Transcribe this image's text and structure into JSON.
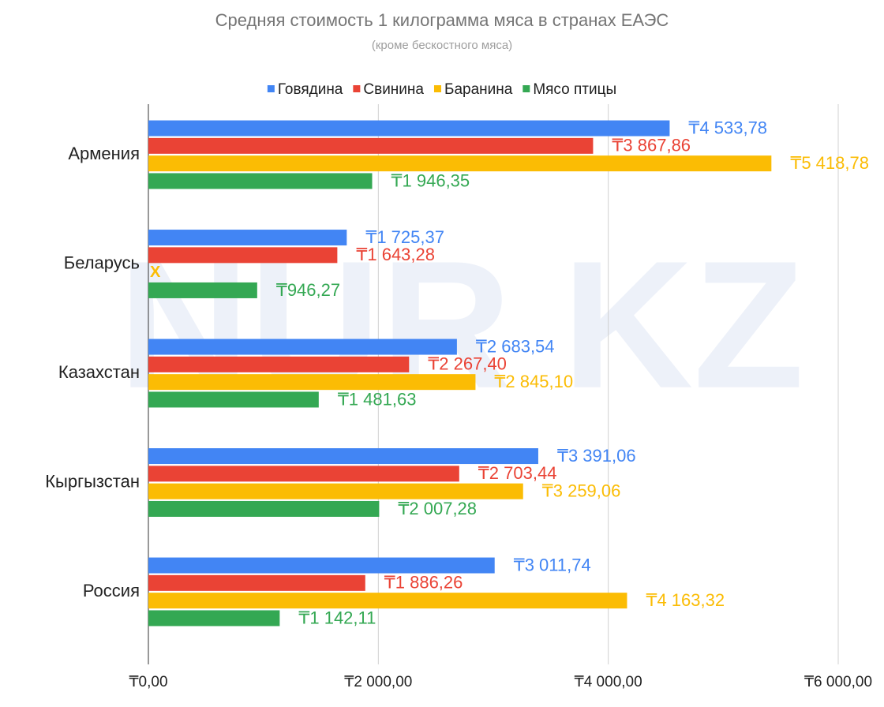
{
  "chart_data": {
    "type": "hbar",
    "title": "Средняя стоимость 1 килограмма мяса в странах ЕАЭС",
    "subtitle": "(кроме бескостного мяса)",
    "watermark": "NUR KZ",
    "no_data_label": "X",
    "categories": [
      "Армения",
      "Беларусь",
      "Казахстан",
      "Кыргызстан",
      "Россия"
    ],
    "series": [
      {
        "name": "Говядина",
        "color": "#4285f4",
        "values": [
          4533.78,
          1725.37,
          2683.54,
          3391.06,
          3011.74
        ],
        "value_labels": [
          "₸4 533,78",
          "₸1 725,37",
          "₸2 683,54",
          "₸3 391,06",
          "₸3 011,74"
        ]
      },
      {
        "name": "Свинина",
        "color": "#ea4335",
        "values": [
          3867.86,
          1643.28,
          2267.4,
          2703.44,
          1886.26
        ],
        "value_labels": [
          "₸3 867,86",
          "₸1 643,28",
          "₸2 267,40",
          "₸2 703,44",
          "₸1 886,26"
        ]
      },
      {
        "name": "Баранина",
        "color": "#fbbc04",
        "values": [
          5418.78,
          null,
          2845.1,
          3259.06,
          4163.32
        ],
        "value_labels": [
          "₸5 418,78",
          null,
          "₸2 845,10",
          "₸3 259,06",
          "₸4 163,32"
        ]
      },
      {
        "name": "Мясо птицы",
        "color": "#34a853",
        "values": [
          1946.35,
          946.27,
          1481.63,
          2007.28,
          1142.11
        ],
        "value_labels": [
          "₸1 946,35",
          "₸946,27",
          "₸1 481,63",
          "₸2 007,28",
          "₸1 142,11"
        ]
      }
    ],
    "xlim": [
      0,
      6000
    ],
    "xticks": [
      {
        "value": 0,
        "label": "₸0,00"
      },
      {
        "value": 2000,
        "label": "₸2 000,00"
      },
      {
        "value": 4000,
        "label": "₸4 000,00"
      },
      {
        "value": 6000,
        "label": "₸6 000,00"
      }
    ],
    "grid": true,
    "legend": "top"
  }
}
